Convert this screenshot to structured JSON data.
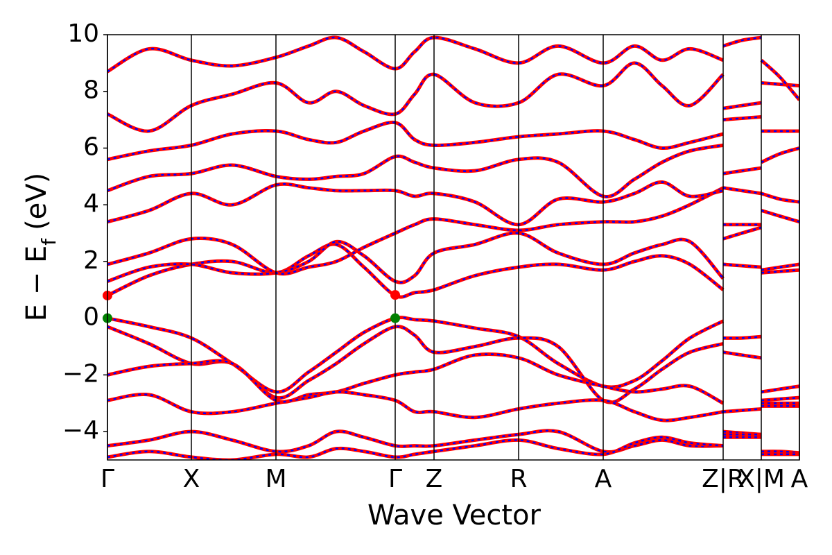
{
  "chart_data": {
    "type": "line",
    "xlabel": "Wave Vector",
    "ylabel": "E − E",
    "ylabel_sub": "f",
    "ylabel_unit": "(eV)",
    "xlim": [
      0,
      9.98
    ],
    "ylim": [
      -5,
      10
    ],
    "xticks": [
      {
        "value": 0,
        "label": "Γ"
      },
      {
        "value": 1.21,
        "label": "X"
      },
      {
        "value": 2.43,
        "label": "M"
      },
      {
        "value": 4.15,
        "label": "Γ"
      },
      {
        "value": 4.71,
        "label": "Z"
      },
      {
        "value": 5.93,
        "label": "R"
      },
      {
        "value": 7.15,
        "label": "A"
      },
      {
        "value": 8.88,
        "label": "Z|R"
      },
      {
        "value": 9.43,
        "label": "X|M"
      },
      {
        "value": 9.98,
        "label": "A"
      }
    ],
    "yticks": [
      {
        "value": -4,
        "label": "−4"
      },
      {
        "value": -2,
        "label": "−2"
      },
      0,
      2,
      4,
      6,
      8,
      10
    ],
    "grid": true,
    "line_color": "#ff0000",
    "dash_color": "#0000ff",
    "x": [
      0,
      0.6,
      1.21,
      1.8,
      2.43,
      2.9,
      3.3,
      3.7,
      4.15,
      4.43,
      4.71,
      5.3,
      5.93,
      6.5,
      7.15,
      7.6,
      8.0,
      8.4,
      8.88,
      8.88,
      8.88,
      9.15,
      9.43,
      9.43,
      9.43,
      9.7,
      9.98
    ],
    "series": [
      {
        "values": [
          0,
          -0.3,
          -0.7,
          -1.6,
          -2.6,
          -1.9,
          -1.2,
          -0.5,
          0,
          -0.05,
          -0.1,
          -0.35,
          -0.65,
          -1.6,
          -2.4,
          -2.2,
          -1.5,
          -0.7,
          -0.1,
          null,
          -0.7,
          -0.7,
          -0.65,
          null,
          -2.6,
          -2.5,
          -2.4
        ]
      },
      {
        "values": [
          -0.3,
          -0.9,
          -1.6,
          -1.6,
          -2.8,
          -2.2,
          -1.6,
          -0.9,
          -0.3,
          -0.6,
          -1.2,
          -1.0,
          -0.7,
          -1.0,
          -2.9,
          -2.5,
          -1.8,
          -1.2,
          -0.9,
          null,
          -1.2,
          -1.3,
          -1.4,
          null,
          -2.9,
          -2.85,
          -2.8
        ]
      },
      {
        "values": [
          -2.0,
          -1.7,
          -1.6,
          -1.6,
          -2.9,
          -2.7,
          -2.6,
          -2.3,
          -2.0,
          -1.9,
          -1.8,
          -1.3,
          -1.4,
          -2.0,
          -2.4,
          -2.6,
          -2.5,
          -2.4,
          -3.0,
          null,
          -3.3,
          -3.25,
          -3.2,
          null,
          -3.0,
          -3.0,
          -3.0
        ]
      },
      {
        "values": [
          -2.9,
          -2.7,
          -3.3,
          -3.3,
          -3.0,
          -2.8,
          -2.6,
          -2.7,
          -2.9,
          -3.3,
          -3.3,
          -3.5,
          -3.2,
          -3.0,
          -2.9,
          -3.3,
          -3.6,
          -3.5,
          -3.3,
          null,
          -4.0,
          -4.05,
          -4.1,
          null,
          -3.1,
          -3.1,
          -3.1
        ]
      },
      {
        "values": [
          -4.5,
          -4.3,
          -4.0,
          -4.3,
          -4.7,
          -4.5,
          -4.0,
          -4.2,
          -4.5,
          -4.5,
          -4.5,
          -4.3,
          -4.1,
          -4.0,
          -4.7,
          -4.5,
          -4.3,
          -4.5,
          -4.5,
          null,
          -4.1,
          -4.1,
          -4.1,
          null,
          -4.7,
          -4.7,
          -4.75
        ]
      },
      {
        "values": [
          -4.9,
          -4.7,
          -4.9,
          -5.0,
          -4.8,
          -4.9,
          -4.6,
          -4.7,
          -4.9,
          -4.8,
          -4.7,
          -4.5,
          -4.3,
          -4.6,
          -4.8,
          -4.4,
          -4.2,
          -4.4,
          -4.5,
          null,
          -4.2,
          -4.2,
          -4.2,
          null,
          -4.8,
          -4.8,
          -4.8
        ]
      },
      {
        "values": [
          0.8,
          1.5,
          1.9,
          2.0,
          1.6,
          2.2,
          2.6,
          1.8,
          0.8,
          0.9,
          1.0,
          1.5,
          1.8,
          1.9,
          1.7,
          2.0,
          2.2,
          1.9,
          1.0,
          null,
          1.9,
          1.85,
          1.8,
          null,
          1.6,
          1.65,
          1.7
        ]
      },
      {
        "values": [
          1.3,
          1.8,
          1.9,
          1.6,
          1.6,
          2.0,
          2.7,
          2.2,
          1.3,
          1.5,
          2.3,
          2.6,
          3.0,
          2.3,
          1.9,
          2.3,
          2.6,
          2.7,
          1.4,
          null,
          2.8,
          3.0,
          3.2,
          null,
          1.7,
          1.8,
          1.9
        ]
      },
      {
        "values": [
          1.9,
          2.3,
          2.8,
          2.6,
          1.6,
          1.8,
          2.0,
          2.5,
          3.0,
          3.3,
          3.5,
          3.3,
          3.1,
          3.3,
          3.4,
          3.4,
          3.6,
          4.0,
          4.6,
          null,
          3.3,
          3.3,
          3.3,
          null,
          3.8,
          3.6,
          3.4
        ]
      },
      {
        "values": [
          3.4,
          3.8,
          4.4,
          4.0,
          4.7,
          4.6,
          4.5,
          4.5,
          4.5,
          4.3,
          4.4,
          4.1,
          3.3,
          4.2,
          4.1,
          4.4,
          4.8,
          4.3,
          4.5,
          null,
          4.6,
          4.5,
          4.4,
          null,
          4.4,
          4.2,
          4.1
        ]
      },
      {
        "values": [
          4.5,
          5.0,
          5.1,
          5.4,
          5.0,
          4.9,
          5.0,
          5.1,
          5.7,
          5.5,
          5.3,
          5.2,
          5.6,
          5.5,
          4.3,
          4.9,
          5.5,
          5.9,
          6.1,
          null,
          5.1,
          5.2,
          5.3,
          null,
          5.5,
          5.8,
          6.0
        ]
      },
      {
        "values": [
          5.6,
          5.9,
          6.1,
          6.5,
          6.6,
          6.3,
          6.2,
          6.6,
          6.9,
          6.3,
          6.1,
          6.2,
          6.4,
          6.5,
          6.6,
          6.3,
          6.0,
          6.2,
          6.5,
          null,
          7.0,
          7.05,
          7.1,
          null,
          6.6,
          6.6,
          6.6
        ]
      },
      {
        "values": [
          7.2,
          6.6,
          7.5,
          7.9,
          8.3,
          7.6,
          8.0,
          7.5,
          7.2,
          7.9,
          8.6,
          7.6,
          7.6,
          8.6,
          8.2,
          9.0,
          8.2,
          7.5,
          8.6,
          null,
          7.4,
          7.5,
          7.6,
          null,
          8.3,
          8.25,
          8.2
        ]
      },
      {
        "values": [
          8.7,
          9.5,
          9.1,
          8.9,
          9.2,
          9.6,
          9.9,
          9.4,
          8.8,
          9.4,
          9.9,
          9.5,
          9.0,
          9.6,
          9.0,
          9.6,
          9.1,
          9.5,
          9.1,
          null,
          9.6,
          9.8,
          9.9,
          null,
          9.1,
          8.5,
          7.7
        ]
      }
    ],
    "vbm": {
      "x": [
        0,
        4.15
      ],
      "y": [
        0,
        0
      ],
      "color": "#008000"
    },
    "cbm": {
      "x": [
        0,
        4.15
      ],
      "y": [
        0.8,
        0.82
      ],
      "color": "#ff0000"
    }
  }
}
